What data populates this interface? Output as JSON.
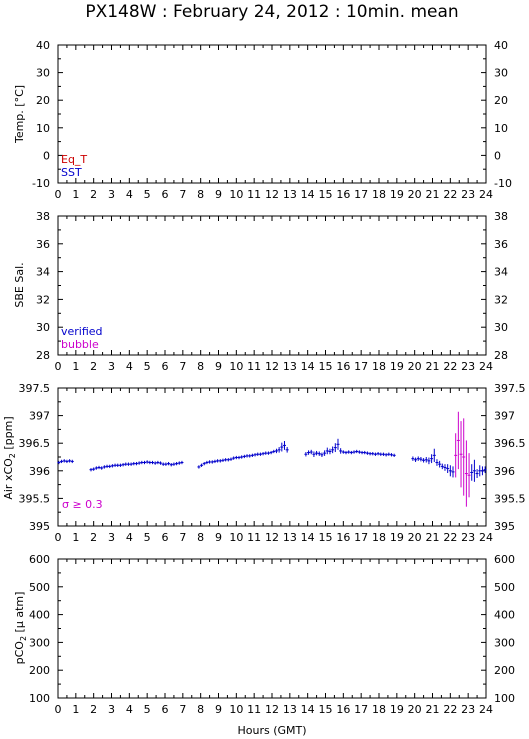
{
  "title": "PX148W : February 24, 2012 : 10min. mean",
  "xlabel": "Hours (GMT)",
  "colors": {
    "eq_t": "#cc0000",
    "sst": "#0000cc",
    "verified": "#0000cc",
    "bubble": "#cc00cc",
    "flag": "#cc00cc",
    "axes": "#000000"
  },
  "chart_data": [
    {
      "type": "scatter",
      "id": "temp",
      "ylabel": "Temp. [°C]",
      "xlim": [
        0,
        24
      ],
      "ylim": [
        -10,
        40
      ],
      "yticks": [
        -10,
        0,
        10,
        20,
        30,
        40
      ],
      "yticklabels": [
        "-10",
        "0",
        "10",
        "20",
        "30",
        "40"
      ],
      "xticks": [
        0,
        1,
        2,
        3,
        4,
        5,
        6,
        7,
        8,
        9,
        10,
        11,
        12,
        13,
        14,
        15,
        16,
        17,
        18,
        19,
        20,
        21,
        22,
        23,
        24
      ],
      "legend": [
        "Eq_T",
        "SST"
      ],
      "legend_placement": "bottom-left",
      "series": [
        {
          "name": "Eq_T",
          "x": [],
          "y": []
        },
        {
          "name": "SST",
          "x": [],
          "y": []
        }
      ]
    },
    {
      "type": "scatter",
      "id": "sal",
      "ylabel": "SBE Sal.",
      "xlim": [
        0,
        24
      ],
      "ylim": [
        28,
        38
      ],
      "yticks": [
        28,
        30,
        32,
        34,
        36,
        38
      ],
      "yticklabels": [
        "28",
        "30",
        "32",
        "34",
        "36",
        "38"
      ],
      "xticks": [
        0,
        1,
        2,
        3,
        4,
        5,
        6,
        7,
        8,
        9,
        10,
        11,
        12,
        13,
        14,
        15,
        16,
        17,
        18,
        19,
        20,
        21,
        22,
        23,
        24
      ],
      "legend": [
        "verified",
        "bubble"
      ],
      "legend_placement": "bottom-left",
      "series": [
        {
          "name": "verified",
          "x": [],
          "y": []
        },
        {
          "name": "bubble",
          "x": [],
          "y": []
        }
      ]
    },
    {
      "type": "scatter",
      "id": "xco2",
      "ylabel_main": "Air xCO",
      "ylabel_sub": "2",
      "ylabel_tail": " [ppm]",
      "xlim": [
        0,
        24
      ],
      "ylim": [
        395,
        397.5
      ],
      "yticks": [
        395,
        395.5,
        396,
        396.5,
        397,
        397.5
      ],
      "yticklabels": [
        "395",
        "395.5",
        "396",
        "396.5",
        "397",
        "397.5"
      ],
      "xticks": [
        0,
        1,
        2,
        3,
        4,
        5,
        6,
        7,
        8,
        9,
        10,
        11,
        12,
        13,
        14,
        15,
        16,
        17,
        18,
        19,
        20,
        21,
        22,
        23,
        24
      ],
      "annotation": "σ ≥ 0.3",
      "series": [
        {
          "x": [
            0.05,
            0.2,
            0.35,
            0.5,
            0.65,
            0.8,
            1.85,
            2.0,
            2.15,
            2.3,
            2.45,
            2.6,
            2.75,
            2.9,
            3.05,
            3.2,
            3.35,
            3.5,
            3.65,
            3.8,
            3.95,
            4.1,
            4.25,
            4.4,
            4.55,
            4.7,
            4.85,
            5.0,
            5.15,
            5.3,
            5.45,
            5.6,
            5.75,
            5.9,
            6.05,
            6.2,
            6.35,
            6.5,
            6.65,
            6.8,
            6.95,
            7.9,
            8.05,
            8.2,
            8.35,
            8.5,
            8.65,
            8.8,
            8.95,
            9.1,
            9.25,
            9.4,
            9.55,
            9.7,
            9.85,
            10.0,
            10.15,
            10.3,
            10.45,
            10.6,
            10.75,
            10.9,
            11.05,
            11.2,
            11.35,
            11.5,
            11.65,
            11.8,
            11.95,
            12.1,
            12.25,
            12.4,
            12.55,
            12.7,
            12.85,
            13.9,
            14.05,
            14.2,
            14.35,
            14.5,
            14.65,
            14.8,
            14.95,
            15.1,
            15.25,
            15.4,
            15.55,
            15.7,
            15.85,
            16.0,
            16.15,
            16.3,
            16.45,
            16.6,
            16.75,
            16.9,
            17.05,
            17.2,
            17.35,
            17.5,
            17.65,
            17.8,
            17.95,
            18.1,
            18.25,
            18.4,
            18.55,
            18.7,
            18.85,
            19.9,
            20.05,
            20.2,
            20.35,
            20.5,
            20.65,
            20.8,
            20.95,
            21.1,
            21.25,
            21.4,
            21.55,
            21.7,
            21.85,
            22.0,
            22.15,
            22.3,
            22.45,
            22.6,
            22.75,
            22.9,
            23.05,
            23.2,
            23.35,
            23.5,
            23.65,
            23.8,
            23.95
          ],
          "y": [
            396.15,
            396.17,
            396.18,
            396.17,
            396.18,
            396.17,
            396.02,
            396.03,
            396.05,
            396.06,
            396.05,
            396.07,
            396.08,
            396.08,
            396.09,
            396.1,
            396.1,
            396.1,
            396.11,
            396.12,
            396.12,
            396.12,
            396.13,
            396.13,
            396.14,
            396.15,
            396.15,
            396.16,
            396.15,
            396.15,
            396.14,
            396.15,
            396.14,
            396.12,
            396.12,
            396.13,
            396.11,
            396.12,
            396.13,
            396.14,
            396.15,
            396.07,
            396.1,
            396.13,
            396.15,
            396.16,
            396.16,
            396.17,
            396.18,
            396.18,
            396.19,
            396.2,
            396.2,
            396.21,
            396.23,
            396.24,
            396.24,
            396.25,
            396.26,
            396.27,
            396.27,
            396.28,
            396.29,
            396.3,
            396.3,
            396.31,
            396.32,
            396.32,
            396.33,
            396.35,
            396.36,
            396.38,
            396.43,
            396.46,
            396.38,
            396.3,
            396.33,
            396.34,
            396.3,
            396.32,
            396.31,
            396.29,
            396.32,
            396.36,
            396.35,
            396.38,
            396.42,
            396.48,
            396.36,
            396.34,
            396.33,
            396.34,
            396.33,
            396.34,
            396.35,
            396.34,
            396.33,
            396.33,
            396.32,
            396.31,
            396.31,
            396.3,
            396.31,
            396.3,
            396.3,
            396.29,
            396.3,
            396.29,
            396.28,
            396.22,
            396.2,
            396.22,
            396.21,
            396.19,
            396.2,
            396.18,
            396.22,
            396.28,
            396.15,
            396.12,
            396.08,
            396.06,
            396.04,
            396.0,
            395.98,
            396.28,
            396.55,
            396.3,
            396.25,
            395.95,
            395.92,
            395.97,
            396.0,
            395.95,
            396.0,
            396.0,
            396.02
          ],
          "err": [
            0.03,
            0.03,
            0.03,
            0.03,
            0.03,
            0.03,
            0.03,
            0.03,
            0.03,
            0.03,
            0.03,
            0.03,
            0.03,
            0.03,
            0.03,
            0.03,
            0.03,
            0.03,
            0.03,
            0.03,
            0.03,
            0.03,
            0.03,
            0.03,
            0.03,
            0.03,
            0.03,
            0.03,
            0.03,
            0.03,
            0.03,
            0.03,
            0.03,
            0.03,
            0.03,
            0.03,
            0.03,
            0.03,
            0.03,
            0.03,
            0.03,
            0.03,
            0.03,
            0.03,
            0.03,
            0.03,
            0.03,
            0.03,
            0.03,
            0.03,
            0.03,
            0.03,
            0.03,
            0.03,
            0.03,
            0.03,
            0.03,
            0.03,
            0.03,
            0.03,
            0.03,
            0.03,
            0.03,
            0.03,
            0.03,
            0.03,
            0.03,
            0.03,
            0.03,
            0.03,
            0.04,
            0.05,
            0.08,
            0.08,
            0.05,
            0.04,
            0.04,
            0.04,
            0.05,
            0.04,
            0.04,
            0.04,
            0.05,
            0.06,
            0.05,
            0.06,
            0.08,
            0.1,
            0.05,
            0.03,
            0.03,
            0.03,
            0.03,
            0.03,
            0.03,
            0.03,
            0.03,
            0.03,
            0.03,
            0.03,
            0.03,
            0.03,
            0.03,
            0.03,
            0.03,
            0.03,
            0.03,
            0.03,
            0.03,
            0.04,
            0.04,
            0.04,
            0.04,
            0.04,
            0.05,
            0.06,
            0.08,
            0.12,
            0.06,
            0.06,
            0.05,
            0.06,
            0.08,
            0.1,
            0.1,
            0.4,
            0.52,
            0.6,
            0.7,
            0.6,
            0.4,
            0.15,
            0.2,
            0.08,
            0.1,
            0.08,
            0.06
          ],
          "flagged": [
            false,
            false,
            false,
            false,
            false,
            false,
            false,
            false,
            false,
            false,
            false,
            false,
            false,
            false,
            false,
            false,
            false,
            false,
            false,
            false,
            false,
            false,
            false,
            false,
            false,
            false,
            false,
            false,
            false,
            false,
            false,
            false,
            false,
            false,
            false,
            false,
            false,
            false,
            false,
            false,
            false,
            false,
            false,
            false,
            false,
            false,
            false,
            false,
            false,
            false,
            false,
            false,
            false,
            false,
            false,
            false,
            false,
            false,
            false,
            false,
            false,
            false,
            false,
            false,
            false,
            false,
            false,
            false,
            false,
            false,
            false,
            false,
            false,
            false,
            false,
            false,
            false,
            false,
            false,
            false,
            false,
            false,
            false,
            false,
            false,
            false,
            false,
            false,
            false,
            false,
            false,
            false,
            false,
            false,
            false,
            false,
            false,
            false,
            false,
            false,
            false,
            false,
            false,
            false,
            false,
            false,
            false,
            false,
            false,
            false,
            false,
            false,
            false,
            false,
            false,
            false,
            false,
            false,
            false,
            false,
            false,
            false,
            false,
            false,
            false,
            true,
            true,
            true,
            true,
            true,
            true,
            false,
            false,
            false,
            false,
            false,
            false
          ]
        }
      ]
    },
    {
      "type": "scatter",
      "id": "pco2",
      "ylabel_main": "pCO",
      "ylabel_sub": "2",
      "ylabel_tail": " [μ atm]",
      "xlim": [
        0,
        24
      ],
      "ylim": [
        100,
        600
      ],
      "yticks": [
        100,
        200,
        300,
        400,
        500,
        600
      ],
      "yticklabels": [
        "100",
        "200",
        "300",
        "400",
        "500",
        "600"
      ],
      "xticks": [
        0,
        1,
        2,
        3,
        4,
        5,
        6,
        7,
        8,
        9,
        10,
        11,
        12,
        13,
        14,
        15,
        16,
        17,
        18,
        19,
        20,
        21,
        22,
        23,
        24
      ],
      "series": [
        {
          "x": [],
          "y": []
        }
      ]
    }
  ]
}
